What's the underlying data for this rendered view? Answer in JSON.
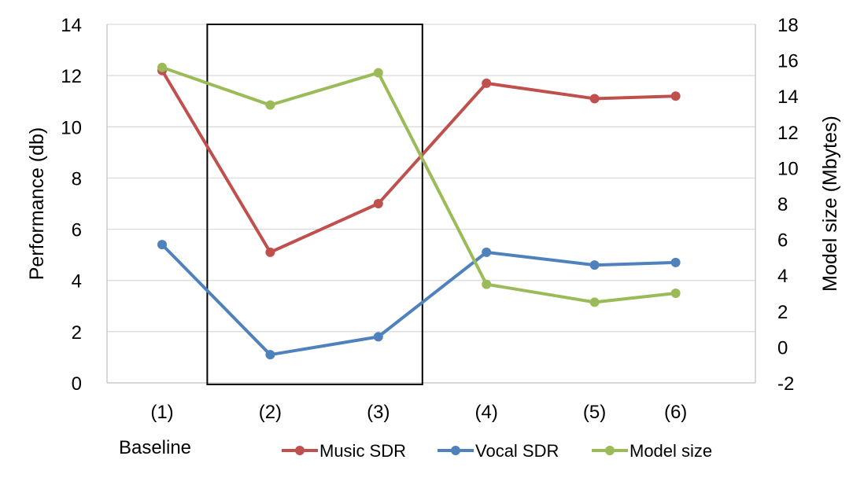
{
  "chart_data": {
    "type": "line",
    "categories": [
      "(1)",
      "(2)",
      "(3)",
      "(4)",
      "(5)",
      "(6)"
    ],
    "x_positions": [
      1,
      2,
      3,
      4,
      5,
      5.75
    ],
    "category_note": "Baseline",
    "y_left": {
      "label": "Performance (db)",
      "lim": [
        0,
        14
      ],
      "step": 2
    },
    "y_right": {
      "label": "Model size (Mbytes)",
      "lim": [
        -2,
        18
      ],
      "step": 2
    },
    "grid": true,
    "legend_position": "bottom",
    "highlight_box": {
      "from_category": "(2)",
      "to_category": "(3)"
    },
    "series": [
      {
        "name": "Music SDR",
        "axis": "left",
        "color": "#c0504d",
        "values": [
          12.2,
          5.1,
          7.0,
          11.7,
          11.1,
          11.2
        ]
      },
      {
        "name": "Vocal SDR",
        "axis": "left",
        "color": "#4f81bd",
        "values": [
          5.4,
          1.1,
          1.8,
          5.1,
          4.6,
          4.7
        ]
      },
      {
        "name": "Model size",
        "axis": "right",
        "color": "#9bbb59",
        "values": [
          15.6,
          13.5,
          15.3,
          3.5,
          2.5,
          3.0
        ]
      }
    ]
  }
}
